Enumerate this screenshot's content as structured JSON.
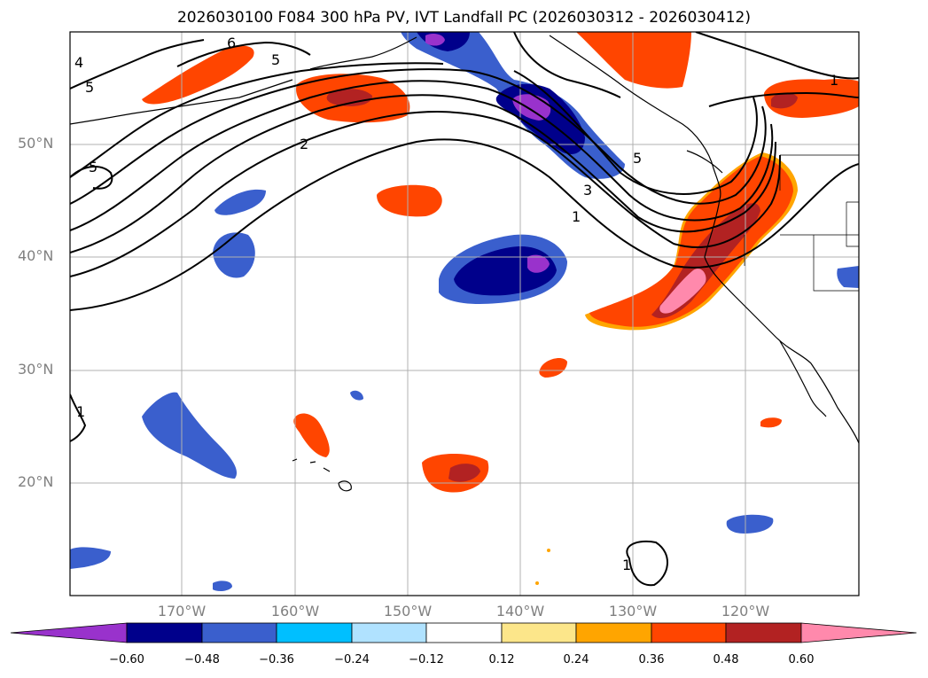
{
  "title": "2026030100 F084 300 hPa PV, IVT Landfall PC (2026030312 - 2026030412)",
  "map": {
    "projection": "plate-carree",
    "lon_range": [
      -180,
      -110
    ],
    "lat_range": [
      10,
      60
    ],
    "grid": true,
    "lat_ticks": [
      "50°N",
      "40°N",
      "30°N",
      "20°N"
    ],
    "lon_ticks": [
      "170°W",
      "160°W",
      "150°W",
      "140°W",
      "130°W",
      "120°W"
    ],
    "contour_labels": [
      "6",
      "5",
      "4",
      "5",
      "2",
      "5",
      "5",
      "3",
      "1",
      "1",
      "1",
      "1"
    ]
  },
  "colorbar": {
    "ticks": [
      "−0.60",
      "−0.48",
      "−0.36",
      "−0.24",
      "−0.12",
      "0.12",
      "0.24",
      "0.36",
      "0.48",
      "0.60"
    ],
    "colors": [
      "#9932cc",
      "#00008b",
      "#3a5fcd",
      "#00bfff",
      "#b0e2ff",
      "#ffffff",
      "#fce68a",
      "#ffa500",
      "#ff4500",
      "#b22222",
      "#ff89ac"
    ],
    "extend": "both"
  }
}
